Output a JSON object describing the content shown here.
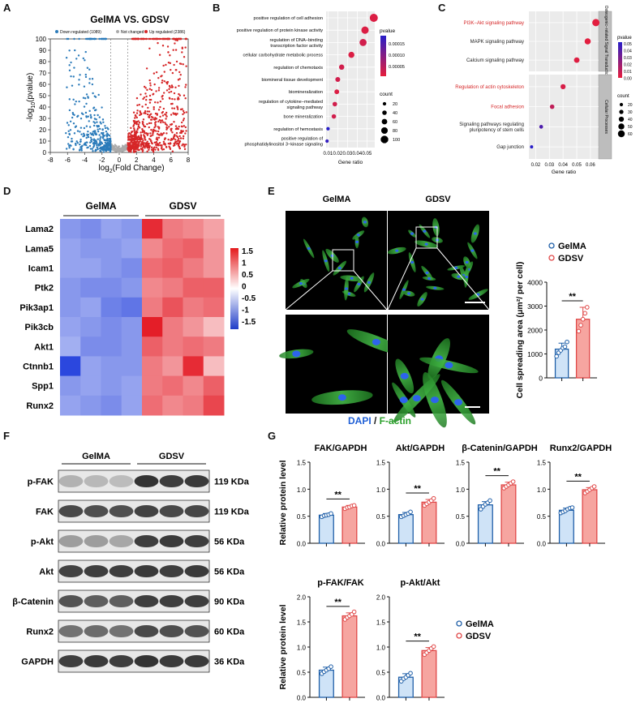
{
  "panel_letters": {
    "a": "A",
    "b": "B",
    "c": "C",
    "d": "D",
    "e": "E",
    "f": "F",
    "g": "G"
  },
  "colors": {
    "blue": "#2b7bba",
    "red": "#d62728",
    "grey": "#aaaaaa",
    "gel_fill": "#cfe3f7",
    "gdsv_fill": "#f6a5a0",
    "gel_edge": "#1f5fa8",
    "gdsv_edge": "#e04848"
  },
  "volcano": {
    "title": "GelMA VS. GDSV",
    "legend": {
      "down": "Down regulated (1089)",
      "nc": "Not changed",
      "up": "Up regulated (2386)"
    },
    "ylabel_pre": "-log",
    "ylabel_sub": "10",
    "ylabel_post": "(pvalue)",
    "xlabel_pre": "log",
    "xlabel_sub": "2",
    "xlabel_post": "(Fold Change)"
  },
  "chart_data": [
    {
      "type": "scatter",
      "title": "GelMA VS. GDSV",
      "xlim": [
        -8,
        8
      ],
      "ylim": [
        0,
        100
      ],
      "xticks": [
        "-8",
        "-6",
        "-4",
        "-2",
        "0",
        "2",
        "4",
        "6",
        "8"
      ],
      "yticks": [
        "0",
        "10",
        "20",
        "30",
        "40",
        "50",
        "60",
        "70",
        "80",
        "90",
        "100"
      ],
      "series": [
        {
          "name": "Down regulated (1089)",
          "count": 1089
        },
        {
          "name": "Not changed"
        },
        {
          "name": "Up regulated (2386)",
          "count": 2386
        }
      ]
    },
    {
      "type": "scatter",
      "xlabel": "Gene ratio",
      "xlim": [
        0.008,
        0.058
      ],
      "xticks": [
        "0.01",
        "0.02",
        "0.03",
        "0.04",
        "0.05"
      ],
      "terms": [
        "positive regulation of cell adhesion",
        "positive regulation of protein kinase activity",
        "regulation of DNA−binding\ntranscription factor activity",
        "cellular carbohydrate metabolic process",
        "regulation of chemotaxis",
        "biomineral tissue development",
        "biomineralization",
        "regulation of cytokine−mediated\nsignaling pathway",
        "bone mineralization",
        "regulation of hemostasis",
        "positive regulation of\nphosphatidylinositol 3−kinase signaling"
      ],
      "x": [
        0.057,
        0.048,
        0.046,
        0.034,
        0.024,
        0.02,
        0.019,
        0.017,
        0.016,
        0.01,
        0.009
      ],
      "pvalue": [
        1e-05,
        1e-05,
        2e-05,
        1e-05,
        2e-05,
        2e-05,
        1e-05,
        2e-05,
        2e-05,
        0.00018,
        0.00017
      ],
      "count": [
        110,
        95,
        90,
        70,
        55,
        48,
        45,
        42,
        40,
        20,
        18
      ],
      "pvalue_legend": {
        "title": "pvalue",
        "ticks": [
          "0.00015",
          "0.00010",
          "0.00005"
        ]
      },
      "count_legend": {
        "title": "count",
        "values": [
          "20",
          "40",
          "60",
          "80",
          "100"
        ]
      }
    },
    {
      "type": "scatter",
      "xlabel": "Gene ratio",
      "xlim": [
        0.015,
        0.066
      ],
      "xticks": [
        "0.02",
        "0.03",
        "0.04",
        "0.05",
        "0.06"
      ],
      "groups": [
        {
          "name": "Osteogenic−related Signal Transduction",
          "terms": [
            "PI3K−Akt signaling pathway",
            "MAPK signaling pathway",
            "Calcium signaling pathway"
          ],
          "x": [
            0.064,
            0.058,
            0.05
          ],
          "count": [
            65,
            52,
            45
          ],
          "pvalue": [
            0.001,
            0.001,
            0.002
          ],
          "highlight": [
            true,
            false,
            false
          ]
        },
        {
          "name": "Cellular Processes",
          "terms": [
            "Regulation of actin cytoskeleton",
            "Focal adhesion",
            "Signaling pathways regulating\npluripotency of stem cells",
            "Gap junction"
          ],
          "x": [
            0.04,
            0.032,
            0.024,
            0.017
          ],
          "count": [
            40,
            33,
            25,
            18
          ],
          "pvalue": [
            0.004,
            0.01,
            0.04,
            0.05
          ],
          "highlight": [
            true,
            true,
            false,
            false
          ]
        }
      ],
      "pvalue_legend": {
        "title": "pvalue",
        "ticks": [
          "0.05",
          "0.04",
          "0.03",
          "0.02",
          "0.01",
          "0.00"
        ]
      },
      "count_legend": {
        "title": "count",
        "values": [
          "20",
          "30",
          "40",
          "50",
          "60"
        ]
      }
    },
    {
      "type": "heatmap",
      "groups": [
        "GelMA",
        "GDSV"
      ],
      "rows": [
        "Lama2",
        "Lama5",
        "Icam1",
        "Ptk2",
        "Pik3ap1",
        "Pik3cb",
        "Akt1",
        "Ctnnb1",
        "Spp1",
        "Runx2"
      ],
      "values": [
        [
          -0.9,
          -1.0,
          -0.8,
          -0.9,
          1.6,
          1.0,
          0.9,
          0.7
        ],
        [
          -0.8,
          -0.9,
          -0.9,
          -0.8,
          0.9,
          1.1,
          1.2,
          0.8
        ],
        [
          -0.8,
          -0.8,
          -0.9,
          -1.0,
          1.1,
          1.2,
          1.0,
          0.8
        ],
        [
          -0.9,
          -1.0,
          -1.0,
          -0.9,
          0.9,
          1.0,
          1.2,
          1.2
        ],
        [
          -0.9,
          -0.8,
          -1.1,
          -1.2,
          1.0,
          1.3,
          1.0,
          1.1
        ],
        [
          -0.8,
          -0.9,
          -1.0,
          -0.9,
          1.7,
          1.0,
          0.8,
          0.5
        ],
        [
          -0.7,
          -1.0,
          -1.0,
          -0.9,
          1.2,
          1.0,
          1.1,
          1.0
        ],
        [
          -1.6,
          -0.8,
          -0.9,
          -0.9,
          1.0,
          0.8,
          1.6,
          0.5
        ],
        [
          -0.9,
          -0.8,
          -0.9,
          -0.8,
          1.0,
          1.1,
          0.9,
          1.2
        ],
        [
          -0.8,
          -0.9,
          -1.0,
          -0.8,
          1.1,
          0.9,
          1.0,
          1.4
        ]
      ],
      "scale_ticks": [
        "1.5",
        "1",
        "0.5",
        "0",
        "-0.5",
        "-1",
        "-1.5"
      ]
    },
    {
      "type": "bar",
      "ylabel": "Cell spreading area (μm²/ per cell)",
      "categories": [
        "GelMA",
        "GDSV"
      ],
      "values": [
        1200,
        2450
      ],
      "errors": [
        250,
        500
      ],
      "points": [
        [
          900,
          1050,
          1150,
          1250,
          1300,
          1500
        ],
        [
          1950,
          2200,
          2450,
          2700,
          2950
        ]
      ],
      "ylim": [
        0,
        4000
      ],
      "yticks": [
        "0",
        "1000",
        "2000",
        "3000",
        "4000"
      ],
      "significance": "**"
    },
    {
      "type": "bar",
      "ylabel": "Relative protein level",
      "categories": [
        "GelMA",
        "GDSV"
      ],
      "ylim": [
        0,
        1.5
      ],
      "yticks": [
        "0.0",
        "0.5",
        "1.0",
        "1.5"
      ],
      "panels": [
        {
          "title": "FAK/GAPDH",
          "values": [
            0.52,
            0.67
          ],
          "errors": [
            0.03,
            0.03
          ],
          "points": [
            [
              0.49,
              0.51,
              0.52,
              0.53,
              0.55
            ],
            [
              0.64,
              0.66,
              0.67,
              0.69,
              0.7
            ]
          ],
          "sig": "**"
        },
        {
          "title": "Akt/GAPDH",
          "values": [
            0.53,
            0.76
          ],
          "errors": [
            0.04,
            0.05
          ],
          "points": [
            [
              0.49,
              0.51,
              0.53,
              0.55,
              0.58
            ],
            [
              0.7,
              0.73,
              0.76,
              0.79,
              0.83
            ]
          ],
          "sig": "**"
        },
        {
          "title": "β-Catenin/GAPDH",
          "values": [
            0.71,
            1.08
          ],
          "errors": [
            0.06,
            0.05
          ],
          "points": [
            [
              0.63,
              0.68,
              0.72,
              0.75,
              0.79
            ],
            [
              1.02,
              1.05,
              1.08,
              1.11,
              1.14
            ]
          ],
          "sig": "**"
        },
        {
          "title": "Runx2/GAPDH",
          "values": [
            0.61,
            0.99
          ],
          "errors": [
            0.04,
            0.04
          ],
          "points": [
            [
              0.56,
              0.58,
              0.6,
              0.63,
              0.65,
              0.66
            ],
            [
              0.93,
              0.96,
              0.99,
              1.02,
              1.05
            ]
          ],
          "sig": "**"
        }
      ]
    },
    {
      "type": "bar",
      "ylabel": "Relative protein level",
      "categories": [
        "GelMA",
        "GDSV"
      ],
      "ylim": [
        0,
        2.0
      ],
      "yticks": [
        "0.0",
        "0.5",
        "1.0",
        "1.5",
        "2.0"
      ],
      "panels": [
        {
          "title": "p-FAK/FAK",
          "values": [
            0.54,
            1.62
          ],
          "errors": [
            0.06,
            0.06
          ],
          "points": [
            [
              0.47,
              0.51,
              0.54,
              0.57,
              0.61
            ],
            [
              1.55,
              1.59,
              1.62,
              1.65,
              1.7
            ]
          ],
          "sig": "**"
        },
        {
          "title": "p-Akt/Akt",
          "values": [
            0.4,
            0.93
          ],
          "errors": [
            0.07,
            0.06
          ],
          "points": [
            [
              0.32,
              0.37,
              0.4,
              0.44,
              0.48
            ],
            [
              0.85,
              0.89,
              0.93,
              0.97,
              1.01
            ]
          ],
          "sig": "**"
        }
      ],
      "legend": [
        "GelMA",
        "GDSV"
      ]
    }
  ],
  "micro": {
    "col1": "GelMA",
    "col2": "GDSV",
    "dapi": "DAPI",
    "sep": " / ",
    "factin": "F-actin"
  },
  "bar_legend": {
    "gel": "GelMA",
    "gdsv": "GDSV"
  },
  "western": {
    "groups": [
      "GelMA",
      "GDSV"
    ],
    "rows": [
      {
        "label": "p-FAK",
        "size": "119 KDa",
        "intensity": [
          0.25,
          0.22,
          0.2,
          0.85,
          0.8,
          0.82
        ]
      },
      {
        "label": "FAK",
        "size": "119 KDa",
        "intensity": [
          0.75,
          0.72,
          0.72,
          0.78,
          0.75,
          0.76
        ]
      },
      {
        "label": "p-Akt",
        "size": "56 KDa",
        "intensity": [
          0.35,
          0.35,
          0.3,
          0.8,
          0.82,
          0.8
        ]
      },
      {
        "label": "Akt",
        "size": "56 KDa",
        "intensity": [
          0.78,
          0.8,
          0.8,
          0.82,
          0.8,
          0.82
        ]
      },
      {
        "label": "β-Catenin",
        "size": "90 KDa",
        "intensity": [
          0.7,
          0.65,
          0.65,
          0.8,
          0.8,
          0.8
        ]
      },
      {
        "label": "Runx2",
        "size": "60 KDa",
        "intensity": [
          0.55,
          0.58,
          0.55,
          0.75,
          0.72,
          0.7
        ]
      },
      {
        "label": "GAPDH",
        "size": "36 KDa",
        "intensity": [
          0.8,
          0.82,
          0.8,
          0.85,
          0.82,
          0.82
        ]
      }
    ]
  }
}
